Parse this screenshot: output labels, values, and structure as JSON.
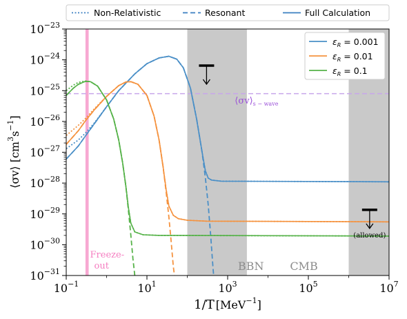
{
  "chart_data": {
    "type": "line",
    "xlabel_base": "1/T",
    "xlabel_unit": "[MeV",
    "xlabel_exp": "−1",
    "xlabel_close": "]",
    "ylabel_main": "⟨σv⟩ [cm",
    "ylabel_exp1": "3",
    "ylabel_mid": "s",
    "ylabel_exp2": "−1",
    "ylabel_close": "]",
    "xscale": "log",
    "yscale": "log",
    "xlim": [
      0.1,
      10000000
    ],
    "ylim": [
      1e-31,
      1e-23
    ],
    "x_ticks": [
      {
        "value": 0.1,
        "base": "10",
        "exp": "−1"
      },
      {
        "value": 10,
        "base": "10",
        "exp": "1"
      },
      {
        "value": 1000,
        "base": "10",
        "exp": "3"
      },
      {
        "value": 100000,
        "base": "10",
        "exp": "5"
      },
      {
        "value": 10000000,
        "base": "10",
        "exp": "7"
      }
    ],
    "y_ticks": [
      {
        "value": 1e-23,
        "base": "10",
        "exp": "−23"
      },
      {
        "value": 1e-24,
        "base": "10",
        "exp": "−24"
      },
      {
        "value": 1e-25,
        "base": "10",
        "exp": "−25"
      },
      {
        "value": 1e-26,
        "base": "10",
        "exp": "−26"
      },
      {
        "value": 1e-27,
        "base": "10",
        "exp": "−27"
      },
      {
        "value": 1e-28,
        "base": "10",
        "exp": "−28"
      },
      {
        "value": 1e-29,
        "base": "10",
        "exp": "−29"
      },
      {
        "value": 1e-30,
        "base": "10",
        "exp": "−30"
      },
      {
        "value": 1e-31,
        "base": "10",
        "exp": "−31"
      }
    ],
    "style_legend": [
      {
        "label": "Non-Relativistic",
        "dash": "dotted"
      },
      {
        "label": "Resonant",
        "dash": "dashed"
      },
      {
        "label": "Full Calculation",
        "dash": "solid"
      }
    ],
    "series": [
      {
        "name": "ε_R = 0.001",
        "legend_sym": "ε",
        "legend_sub": "R",
        "legend_val": " = 0.001",
        "color": "#4a8fc7",
        "full": [
          [
            0.1,
            6e-28
          ],
          [
            0.2,
            1.6e-27
          ],
          [
            0.3,
            3.4e-27
          ],
          [
            0.5,
            8.5e-27
          ],
          [
            1,
            3e-26
          ],
          [
            2,
            1e-25
          ],
          [
            5,
            3.5e-25
          ],
          [
            10,
            7.5e-25
          ],
          [
            20,
            1.15e-24
          ],
          [
            35,
            1.3e-24
          ],
          [
            55,
            1.05e-24
          ],
          [
            80,
            5.5e-25
          ],
          [
            120,
            1.2e-25
          ],
          [
            170,
            1.2e-26
          ],
          [
            230,
            1.1e-27
          ],
          [
            280,
            2.5e-28
          ],
          [
            330,
            1.45e-28
          ],
          [
            400,
            1.25e-28
          ],
          [
            700,
            1.15e-28
          ],
          [
            10000000,
            1.1e-28
          ]
        ],
        "nonrel": [
          [
            0.1,
            1.3e-27
          ],
          [
            0.2,
            2.5e-27
          ],
          [
            0.3,
            4.2e-27
          ],
          [
            0.5,
            9e-27
          ],
          [
            1,
            3e-26
          ],
          [
            2,
            1e-25
          ],
          [
            5,
            3.5e-25
          ],
          [
            10,
            7.5e-25
          ],
          [
            20,
            1.15e-24
          ],
          [
            35,
            1.3e-24
          ],
          [
            55,
            1.05e-24
          ],
          [
            80,
            5.5e-25
          ],
          [
            120,
            1.2e-25
          ],
          [
            170,
            1.2e-26
          ],
          [
            230,
            1.1e-27
          ],
          [
            280,
            2.5e-28
          ],
          [
            330,
            1.45e-28
          ],
          [
            400,
            1.25e-28
          ],
          [
            700,
            1.15e-28
          ],
          [
            10000000,
            1.1e-28
          ]
        ],
        "resonant": [
          [
            0.1,
            6e-28
          ],
          [
            0.2,
            1.6e-27
          ],
          [
            0.3,
            3.4e-27
          ],
          [
            0.5,
            8.5e-27
          ],
          [
            1,
            3e-26
          ],
          [
            2,
            1e-25
          ],
          [
            5,
            3.5e-25
          ],
          [
            10,
            7.5e-25
          ],
          [
            20,
            1.15e-24
          ],
          [
            35,
            1.3e-24
          ],
          [
            55,
            1.05e-24
          ],
          [
            80,
            5.5e-25
          ],
          [
            120,
            1.2e-25
          ],
          [
            170,
            1.2e-26
          ],
          [
            230,
            1.1e-27
          ],
          [
            280,
            1.5e-28
          ],
          [
            330,
            2e-29
          ],
          [
            380,
            2e-30
          ],
          [
            430,
            2e-31
          ],
          [
            450,
            1e-31
          ]
        ]
      },
      {
        "name": "ε_R = 0.01",
        "legend_sym": "ε",
        "legend_sub": "R",
        "legend_val": " = 0.01",
        "color": "#f5923e",
        "full": [
          [
            0.1,
            1.8e-27
          ],
          [
            0.2,
            5e-27
          ],
          [
            0.3,
            1.05e-26
          ],
          [
            0.5,
            2.4e-26
          ],
          [
            1,
            6.5e-26
          ],
          [
            2,
            1.45e-25
          ],
          [
            3,
            1.9e-25
          ],
          [
            4,
            1.95e-25
          ],
          [
            6,
            1.6e-25
          ],
          [
            10,
            7e-26
          ],
          [
            15,
            1.5e-26
          ],
          [
            20,
            2.5e-27
          ],
          [
            25,
            3.5e-28
          ],
          [
            30,
            6e-29
          ],
          [
            35,
            1.8e-29
          ],
          [
            45,
            9e-30
          ],
          [
            60,
            7e-30
          ],
          [
            100,
            6.2e-30
          ],
          [
            300,
            5.8e-30
          ],
          [
            10000000,
            5.5e-30
          ]
        ],
        "nonrel": [
          [
            0.1,
            3.5e-27
          ],
          [
            0.2,
            7.5e-27
          ],
          [
            0.3,
            1.25e-26
          ],
          [
            0.5,
            2.6e-26
          ],
          [
            1,
            6.5e-26
          ],
          [
            2,
            1.45e-25
          ],
          [
            3,
            1.9e-25
          ],
          [
            4,
            1.95e-25
          ],
          [
            6,
            1.6e-25
          ],
          [
            10,
            7e-26
          ],
          [
            15,
            1.5e-26
          ],
          [
            20,
            2.5e-27
          ],
          [
            25,
            3.5e-28
          ],
          [
            30,
            6e-29
          ],
          [
            35,
            1.8e-29
          ],
          [
            45,
            9e-30
          ],
          [
            60,
            7e-30
          ],
          [
            100,
            6.2e-30
          ],
          [
            300,
            5.8e-30
          ],
          [
            10000000,
            5.5e-30
          ]
        ],
        "resonant": [
          [
            0.1,
            1.8e-27
          ],
          [
            0.2,
            5e-27
          ],
          [
            0.3,
            1.05e-26
          ],
          [
            0.5,
            2.4e-26
          ],
          [
            1,
            6.5e-26
          ],
          [
            2,
            1.45e-25
          ],
          [
            3,
            1.9e-25
          ],
          [
            4,
            1.95e-25
          ],
          [
            6,
            1.6e-25
          ],
          [
            10,
            7e-26
          ],
          [
            15,
            1.5e-26
          ],
          [
            20,
            2.5e-27
          ],
          [
            25,
            3.5e-28
          ],
          [
            30,
            5e-29
          ],
          [
            35,
            8e-30
          ],
          [
            40,
            1.2e-30
          ],
          [
            45,
            2e-31
          ],
          [
            48,
            1e-31
          ]
        ]
      },
      {
        "name": "ε_R = 0.1",
        "legend_sym": "ε",
        "legend_sub": "R",
        "legend_val": " = 0.1",
        "color": "#55b248",
        "full": [
          [
            0.1,
            7e-26
          ],
          [
            0.15,
            1.2e-25
          ],
          [
            0.2,
            1.6e-25
          ],
          [
            0.3,
            2e-25
          ],
          [
            0.4,
            1.95e-25
          ],
          [
            0.6,
            1.4e-25
          ],
          [
            1,
            5e-26
          ],
          [
            1.5,
            1.2e-26
          ],
          [
            2,
            2.5e-27
          ],
          [
            2.5,
            4.5e-28
          ],
          [
            3,
            8e-29
          ],
          [
            3.5,
            1.5e-29
          ],
          [
            4,
            5e-30
          ],
          [
            5,
            2.6e-30
          ],
          [
            8,
            2.1e-30
          ],
          [
            20,
            2e-30
          ],
          [
            10000000,
            1.9e-30
          ]
        ],
        "nonrel": [
          [
            0.1,
            1e-25
          ],
          [
            0.15,
            1.5e-25
          ],
          [
            0.2,
            1.85e-25
          ],
          [
            0.3,
            2.05e-25
          ],
          [
            0.4,
            1.95e-25
          ],
          [
            0.6,
            1.4e-25
          ],
          [
            1,
            5e-26
          ],
          [
            1.5,
            1.2e-26
          ],
          [
            2,
            2.5e-27
          ],
          [
            2.5,
            4.5e-28
          ],
          [
            3,
            8e-29
          ],
          [
            3.5,
            1.5e-29
          ],
          [
            4,
            5e-30
          ],
          [
            5,
            2.6e-30
          ],
          [
            8,
            2.1e-30
          ],
          [
            20,
            2e-30
          ],
          [
            10000000,
            1.9e-30
          ]
        ],
        "resonant": [
          [
            0.1,
            7e-26
          ],
          [
            0.15,
            1.2e-25
          ],
          [
            0.2,
            1.6e-25
          ],
          [
            0.3,
            2e-25
          ],
          [
            0.4,
            1.95e-25
          ],
          [
            0.6,
            1.4e-25
          ],
          [
            1,
            5e-26
          ],
          [
            1.5,
            1.2e-26
          ],
          [
            2,
            2.5e-27
          ],
          [
            2.5,
            4.5e-28
          ],
          [
            3,
            8e-29
          ],
          [
            3.5,
            1.2e-29
          ],
          [
            4,
            2e-30
          ],
          [
            4.5,
            3.5e-31
          ],
          [
            5,
            1e-31
          ]
        ]
      }
    ],
    "swave": {
      "value": 8e-26,
      "color": "#c8a6ea",
      "label_sym": "⟨σv⟩",
      "label_sub": "s − wave",
      "label_color": "#9a4fd8",
      "label_at": [
        1500,
        3.8e-26
      ]
    },
    "regions": [
      {
        "from": 100,
        "to": 3000,
        "color": "#c9c9c9",
        "label": "BBN",
        "label_at": 1800
      },
      {
        "from": 1000000,
        "to": 10000000,
        "color": "#c9c9c9",
        "label": "CMB",
        "label_at": 35000
      }
    ],
    "freeze_out": {
      "from": 0.3,
      "to": 0.36,
      "color": "#f7a8d2",
      "label_line1": "Freeze-",
      "label_line2": "out",
      "label_color": "#f57dc0"
    },
    "limits": [
      {
        "x": 300,
        "y": 6.5e-25
      },
      {
        "x": 3300000,
        "y": 1.35e-29,
        "label": "(allowed)"
      }
    ]
  }
}
